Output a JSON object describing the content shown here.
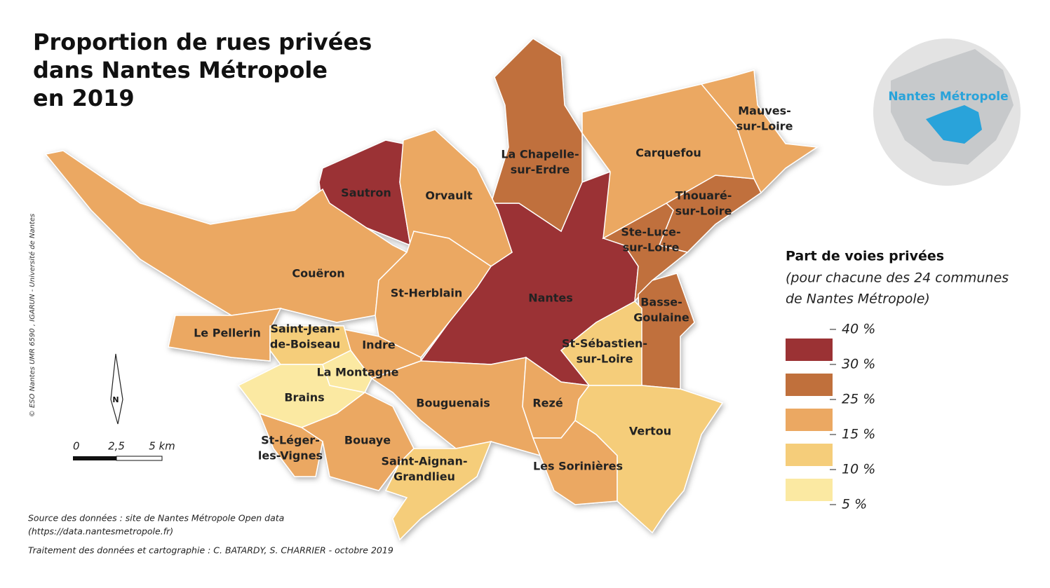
{
  "title": [
    "Proportion de rues privées",
    "dans Nantes Métropole",
    "en 2019"
  ],
  "inset_label": "Nantes Métropole",
  "legend": {
    "title": "Part de voies privées",
    "subtitle": [
      "(pour chacune des 24 communes",
      "de Nantes Métropole)"
    ],
    "breaks": [
      {
        "value": 40,
        "label": "40 %"
      },
      {
        "value": 30,
        "label": "30 %"
      },
      {
        "value": 25,
        "label": "25 %"
      },
      {
        "value": 15,
        "label": "15 %"
      },
      {
        "value": 10,
        "label": "10 %"
      },
      {
        "value": 5,
        "label": "5 %"
      }
    ],
    "colors": [
      "#9b3234",
      "#c0703c",
      "#eba862",
      "#f5cd7a",
      "#fbe9a2"
    ]
  },
  "communes": [
    {
      "name": [
        "Nantes"
      ],
      "color": "#9b3234"
    },
    {
      "name": [
        "Sautron"
      ],
      "color": "#9b3234"
    },
    {
      "name": [
        "La Chapelle-",
        "sur-Erdre"
      ],
      "color": "#c0703c"
    },
    {
      "name": [
        "Thouaré-",
        "sur-Loire"
      ],
      "color": "#c0703c"
    },
    {
      "name": [
        "Ste-Luce-",
        "sur-Loire"
      ],
      "color": "#c0703c"
    },
    {
      "name": [
        "Basse-",
        "Goulaine"
      ],
      "color": "#c0703c"
    },
    {
      "name": [
        "Orvault"
      ],
      "color": "#eba862"
    },
    {
      "name": [
        "Carquefou"
      ],
      "color": "#eba862"
    },
    {
      "name": [
        "Mauves-",
        "sur-Loire"
      ],
      "color": "#eba862"
    },
    {
      "name": [
        "Couëron"
      ],
      "color": "#eba862"
    },
    {
      "name": [
        "St-Herblain"
      ],
      "color": "#eba862"
    },
    {
      "name": [
        "Le Pellerin"
      ],
      "color": "#eba862"
    },
    {
      "name": [
        "Indre"
      ],
      "color": "#eba862"
    },
    {
      "name": [
        "Bouguenais"
      ],
      "color": "#eba862"
    },
    {
      "name": [
        "Rezé"
      ],
      "color": "#eba862"
    },
    {
      "name": [
        "Les Sorinières"
      ],
      "color": "#eba862"
    },
    {
      "name": [
        "Bouaye"
      ],
      "color": "#eba862"
    },
    {
      "name": [
        "St-Léger-",
        "les-Vignes"
      ],
      "color": "#eba862"
    },
    {
      "name": [
        "Saint-Jean-",
        "de-Boiseau"
      ],
      "color": "#f5cd7a"
    },
    {
      "name": [
        "St-Sébastien-",
        "sur-Loire"
      ],
      "color": "#f5cd7a"
    },
    {
      "name": [
        "Vertou"
      ],
      "color": "#f5cd7a"
    },
    {
      "name": [
        "Saint-Aignan-",
        "Grandlieu"
      ],
      "color": "#f5cd7a"
    },
    {
      "name": [
        "Brains"
      ],
      "color": "#fbe9a2"
    },
    {
      "name": [
        "La Montagne"
      ],
      "color": "#fbe9a2"
    }
  ],
  "north": "N",
  "scale": [
    "0",
    "2,5",
    "5 km"
  ],
  "sources": [
    "Source des données : site de Nantes Métropole Open data",
    "(https://data.nantesmetropole.fr)",
    "Traitement des données et cartographie : C. BATARDY, S. CHARRIER - octobre 2019"
  ],
  "credit": "© ESO Nantes UMR 6590 , IGARUN - Université de Nantes"
}
